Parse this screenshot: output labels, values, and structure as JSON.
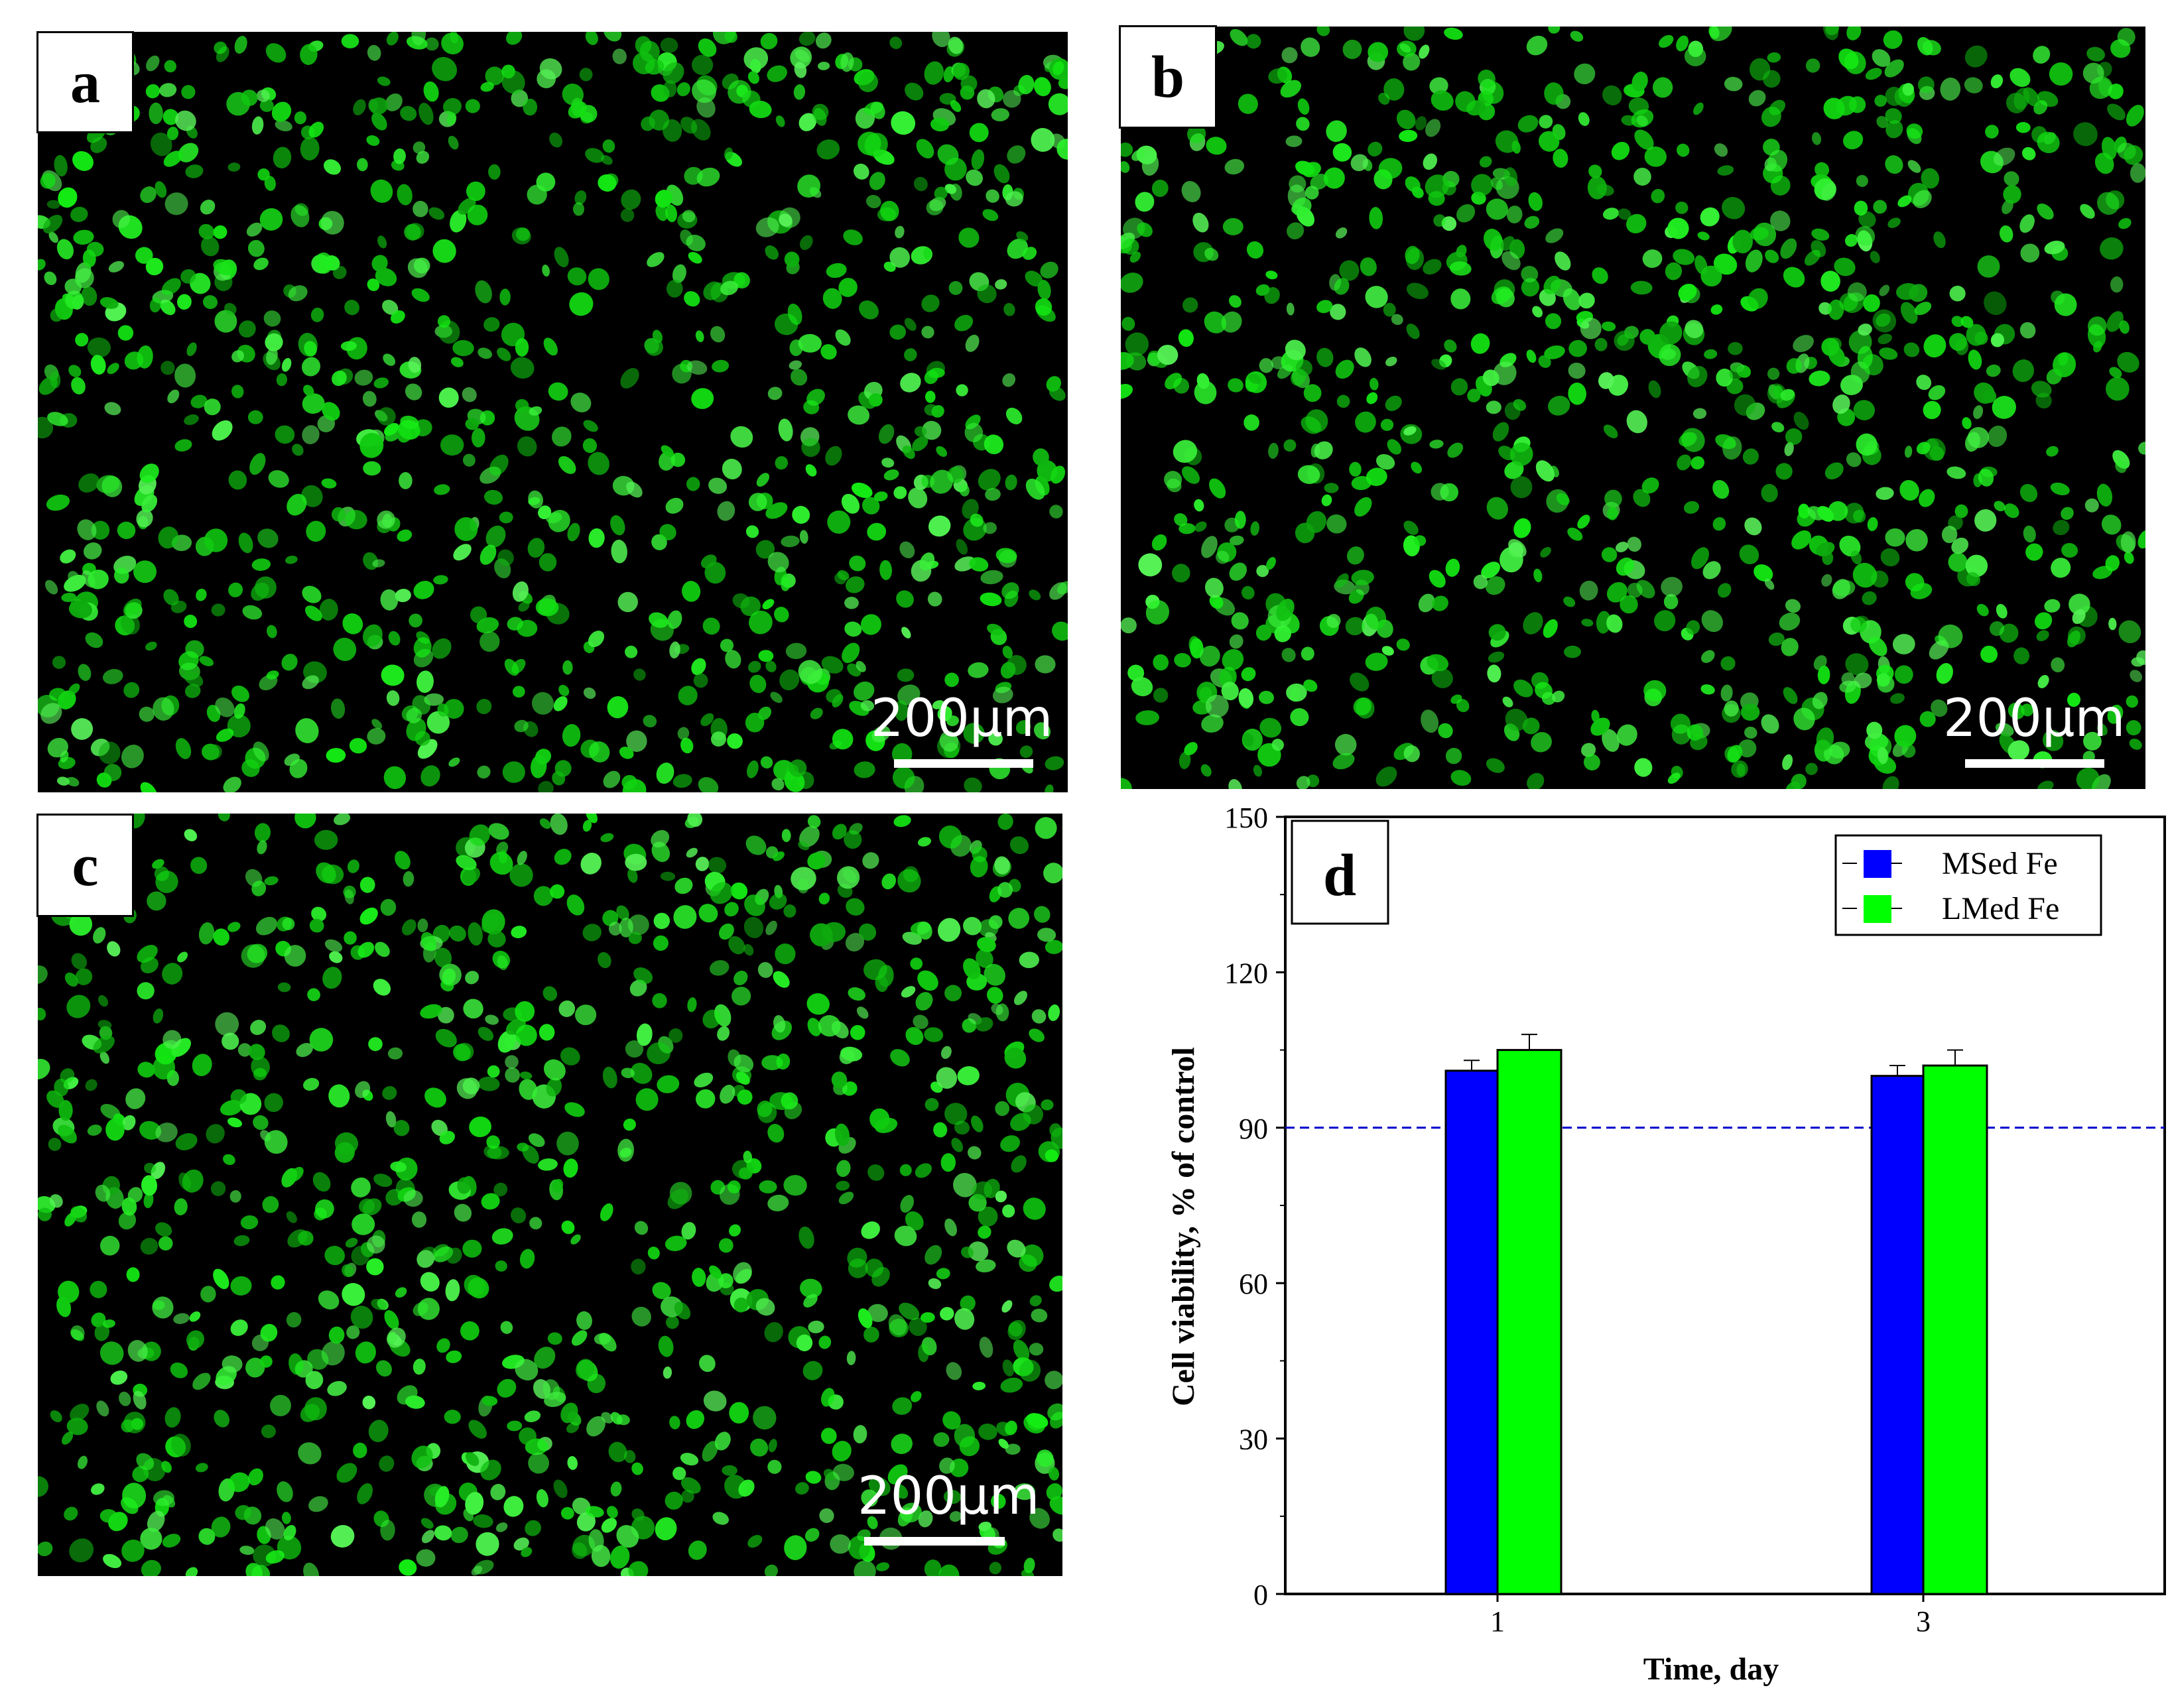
{
  "panels": {
    "a": {
      "label": "a",
      "scale_text": "200μm"
    },
    "b": {
      "label": "b",
      "scale_text": "200μm"
    },
    "c": {
      "label": "c",
      "scale_text": "200μm"
    }
  },
  "colors": {
    "cell_fill": "#25e025",
    "background": "#000000",
    "series_msed": "#0000ff",
    "series_lmed": "#00ff00",
    "reference_line": "#0000cc"
  },
  "chart_data": {
    "type": "bar",
    "panel_label": "d",
    "categories": [
      "1",
      "3"
    ],
    "series": [
      {
        "name": "MSed Fe",
        "values": [
          101,
          100
        ],
        "errors": [
          2,
          2
        ],
        "color": "#0000ff"
      },
      {
        "name": "LMed Fe",
        "values": [
          105,
          102
        ],
        "errors": [
          3,
          3
        ],
        "color": "#00ff00"
      }
    ],
    "reference_line": 90,
    "xlabel": "Time, day",
    "ylabel": "Cell viability, % of control",
    "ylim": [
      0,
      150
    ],
    "yticks": [
      0,
      30,
      60,
      90,
      120,
      150
    ],
    "legend": "top-right",
    "grid": false
  }
}
